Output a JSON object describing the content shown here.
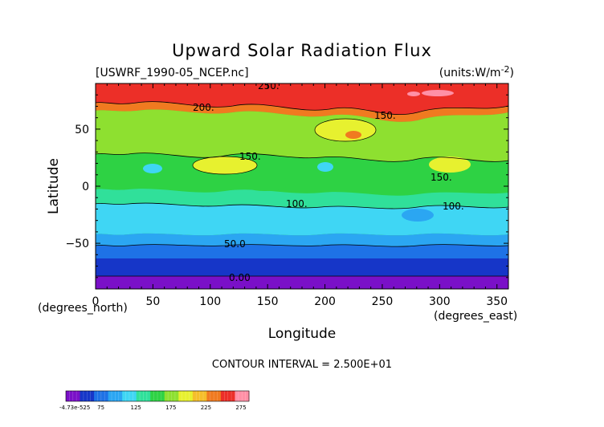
{
  "chart_data": {
    "type": "heatmap",
    "title": "Upward Solar Radiation Flux",
    "file_label": "[USWRF_1990-05_NCEP.nc]",
    "units_label": "(units:W/m^-2)",
    "xlabel": "Longitude",
    "ylabel": "Latitude",
    "x_corner_label": "(degrees_north)",
    "x_units_label": "(degrees_east)",
    "xlim": [
      0,
      360
    ],
    "ylim": [
      -90,
      90
    ],
    "xticks": [
      "0",
      "50",
      "100",
      "150",
      "200",
      "250",
      "300",
      "350"
    ],
    "yticks": [
      "50",
      "0",
      "−50"
    ],
    "contour_interval_text": "CONTOUR INTERVAL = 2.500E+01",
    "contour_labels": [
      "250.",
      "200.",
      "150.",
      "100.",
      "50.0",
      "0.00",
      "150.",
      "100.",
      "150."
    ],
    "colorbar_labels": [
      "-4.73e-525",
      "75",
      "125",
      "175",
      "225",
      "275"
    ],
    "latitude_profile": [
      {
        "lat": 80,
        "value": 240
      },
      {
        "lat": 65,
        "value": 190
      },
      {
        "lat": 50,
        "value": 165
      },
      {
        "lat": 35,
        "value": 160
      },
      {
        "lat": 20,
        "value": 155
      },
      {
        "lat": 5,
        "value": 150
      },
      {
        "lat": -10,
        "value": 120
      },
      {
        "lat": -25,
        "value": 90
      },
      {
        "lat": -40,
        "value": 75
      },
      {
        "lat": -55,
        "value": 35
      },
      {
        "lat": -70,
        "value": 10
      },
      {
        "lat": -85,
        "value": 0
      }
    ],
    "colors": {
      "c0": "#7a10c8",
      "c1": "#1636c8",
      "c2": "#1e72e6",
      "c3": "#2ba6f2",
      "c4": "#3fd6f4",
      "c5": "#30e09a",
      "c6": "#2ed244",
      "c7": "#8ee030",
      "c8": "#e7f12f",
      "c9": "#f5be2a",
      "c10": "#f07a20",
      "c11": "#ec2f28",
      "c12": "#ff90a6"
    }
  }
}
